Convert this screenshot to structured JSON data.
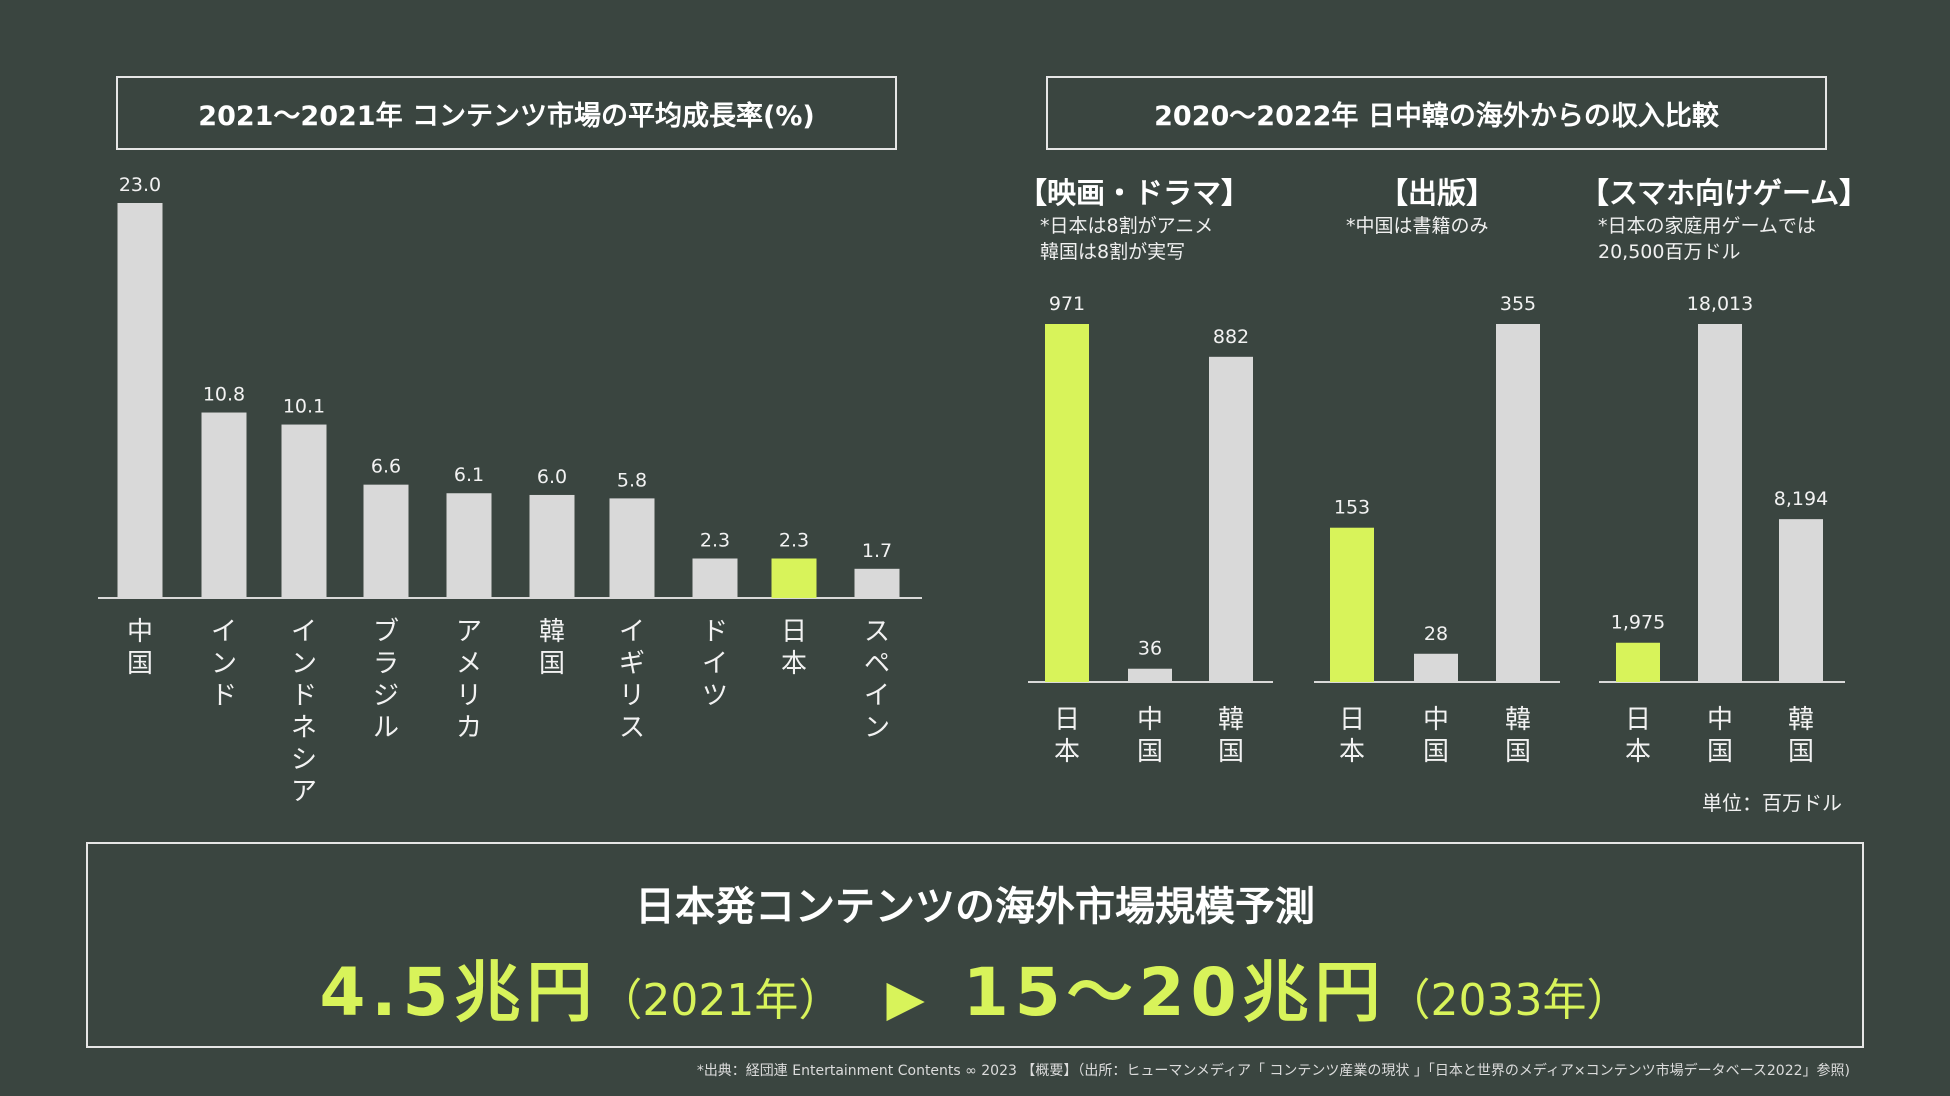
{
  "colors": {
    "background": "#3a4540",
    "highlight": "#d8f35a",
    "bar": "#d9d9d9",
    "axis": "#d9d9d9",
    "text": "#f2f2f2"
  },
  "chart_data": [
    {
      "type": "bar",
      "title": "2021〜2021年 コンテンツ市場の平均成長率(%)",
      "categories": [
        "中国",
        "インド",
        "インドネシア",
        "ブラジル",
        "アメリカ",
        "韓国",
        "イギリス",
        "ドイツ",
        "日本",
        "スペイン"
      ],
      "values": [
        23.0,
        10.8,
        10.1,
        6.6,
        6.1,
        6.0,
        5.8,
        2.3,
        2.3,
        1.7
      ],
      "value_labels": [
        "23.0",
        "10.8",
        "10.1",
        "6.6",
        "6.1",
        "6.0",
        "5.8",
        "2.3",
        "2.3",
        "1.7"
      ],
      "highlight": "日本",
      "ylim": [
        0,
        23
      ]
    },
    {
      "type": "bar",
      "title": "2020〜2022年 日中韓の海外からの収入比較",
      "unit": "単位：百万ドル",
      "highlight": "日本",
      "panels": [
        {
          "name": "【映画・ドラマ】",
          "note": [
            "*日本は8割がアニメ",
            " 韓国は8割が実写"
          ],
          "categories": [
            "日本",
            "中国",
            "韓国"
          ],
          "values": [
            971,
            36,
            882
          ],
          "value_labels": [
            "971",
            "36",
            "882"
          ]
        },
        {
          "name": "【出版】",
          "note": [
            "*中国は書籍のみ"
          ],
          "categories": [
            "日本",
            "中国",
            "韓国"
          ],
          "values": [
            153,
            28,
            355
          ],
          "value_labels": [
            "153",
            "28",
            "355"
          ]
        },
        {
          "name": "【スマホ向けゲーム】",
          "note": [
            "*日本の家庭用ゲームでは",
            "20,500百万ドル"
          ],
          "categories": [
            "日本",
            "中国",
            "韓国"
          ],
          "values": [
            1975,
            18013,
            8194
          ],
          "value_labels": [
            "1,975",
            "18,013",
            "8,194"
          ]
        }
      ]
    }
  ],
  "forecast": {
    "title": "日本発コンテンツの海外市場規模予測",
    "value_from": "4.5兆円",
    "year_from": "（2021年）",
    "arrow": "▶",
    "value_to": "15〜20兆円",
    "year_to": "（2033年）"
  },
  "source": "*出典：経団連 Entertainment Contents ∞ 2023 【概要】（出所：ヒューマンメディア「 コンテンツ産業の現状 」「日本と世界のメディア×コンテンツ市場データベース2022」参照)"
}
